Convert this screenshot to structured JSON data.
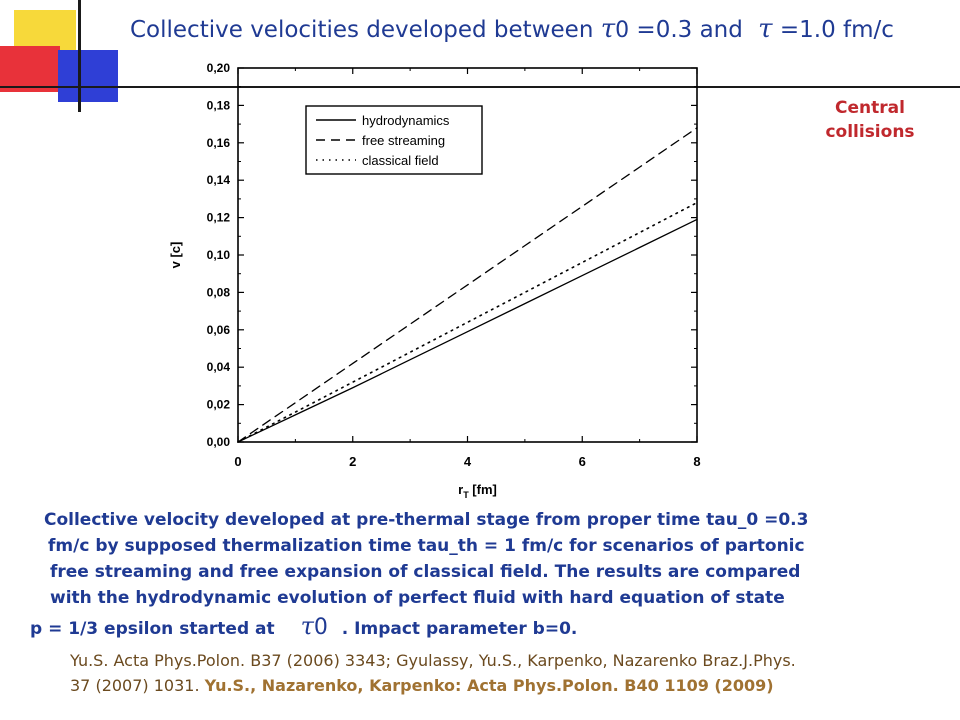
{
  "header": {
    "title_prefix": "Collective velocities developed between",
    "tau_symbol": "τ",
    "tau_subscript": "0",
    "title_mid": "=0.3 and",
    "title_suffix": "=1.0 fm/c"
  },
  "side_note": {
    "line1": "Central",
    "line2": "collisions"
  },
  "description": {
    "line1": "Collective velocity developed at pre-thermal stage from proper time tau_0 =0.3",
    "line2": "fm/c by supposed thermalization time tau_th = 1 fm/c for scenarios of partonic",
    "line3": "free streaming and free expansion of classical field. The results are compared",
    "line4": "with the hydrodynamic  evolution of perfect fluid with hard equation of state",
    "line5_prefix": "p = 1/3 epsilon started at",
    "line5_suffix": ". Impact parameter b=0."
  },
  "references": {
    "line1": "Yu.S. Acta Phys.Polon. B37 (2006) 3343; Gyulassy, Yu.S., Karpenko, Nazarenko Braz.J.Phys.",
    "line2_plain": "37 (2007) 1031.",
    "line2_bold": "Yu.S., Nazarenko, Karpenko: Acta Phys.Polon. B40 1109 (2009)"
  },
  "colors": {
    "title": "#1f3a93",
    "side_note": "#c0282d",
    "description": "#1f3a93",
    "references": "#6b4a1f",
    "references_bold": "#a07232",
    "deco_yellow": "#f7d93a",
    "deco_red": "#e8323a",
    "deco_blue": "#2f3fd6"
  },
  "chart_data": {
    "type": "line",
    "xlabel": "r",
    "xlabel_sub": "T",
    "xlabel_unit": "[fm]",
    "ylabel": "v [c]",
    "xlim": [
      0,
      8
    ],
    "ylim": [
      0,
      0.2
    ],
    "x_ticks": [
      "0",
      "2",
      "4",
      "6",
      "8"
    ],
    "y_ticks": [
      "0,00",
      "0,02",
      "0,04",
      "0,06",
      "0,08",
      "0,10",
      "0,12",
      "0,14",
      "0,16",
      "0,18",
      "0,20"
    ],
    "legend_position": "top-left",
    "grid": false,
    "series": [
      {
        "name": "hydrodynamics",
        "style": "solid",
        "x": [
          0,
          1,
          2,
          3,
          4,
          5,
          6,
          7,
          8
        ],
        "y": [
          0.0,
          0.0145,
          0.029,
          0.044,
          0.059,
          0.074,
          0.089,
          0.104,
          0.119
        ]
      },
      {
        "name": "free streaming",
        "style": "dashed",
        "x": [
          0,
          1,
          2,
          3,
          4,
          5,
          6,
          7,
          8
        ],
        "y": [
          0.0,
          0.021,
          0.042,
          0.063,
          0.084,
          0.105,
          0.126,
          0.147,
          0.168
        ]
      },
      {
        "name": "classical field",
        "style": "dotted",
        "x": [
          0,
          1,
          2,
          3,
          4,
          5,
          6,
          7,
          8
        ],
        "y": [
          0.0,
          0.016,
          0.032,
          0.048,
          0.064,
          0.08,
          0.096,
          0.112,
          0.128
        ]
      }
    ]
  }
}
